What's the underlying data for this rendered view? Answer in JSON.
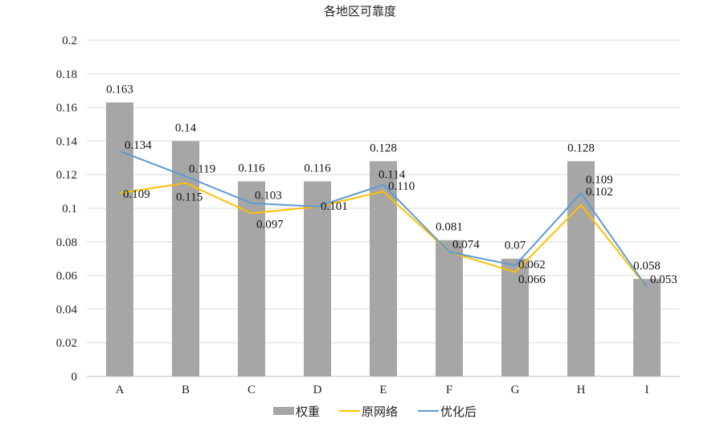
{
  "chart_data": {
    "type": "bar",
    "title": "各地区可靠度",
    "categories": [
      "A",
      "B",
      "C",
      "D",
      "E",
      "F",
      "G",
      "H",
      "I"
    ],
    "ylim": [
      0,
      0.2
    ],
    "yticks": [
      "0",
      "0.02",
      "0.04",
      "0.06",
      "0.08",
      "0.1",
      "0.12",
      "0.14",
      "0.16",
      "0.18",
      "0.2"
    ],
    "grid": true,
    "legend_position": "bottom",
    "series": [
      {
        "name": "权重",
        "type": "bar",
        "color": "#a6a6a6",
        "values": [
          0.163,
          0.14,
          0.116,
          0.116,
          0.128,
          0.081,
          0.07,
          0.128,
          0.058
        ],
        "labels": [
          "0.163",
          "0.14",
          "0.116",
          "0.116",
          "0.128",
          "0.081",
          "0.07",
          "0.128",
          "0.058"
        ]
      },
      {
        "name": "原网络",
        "type": "line",
        "color": "#ffc000",
        "values": [
          0.109,
          0.115,
          0.097,
          0.101,
          0.11,
          0.074,
          0.062,
          0.102,
          0.053
        ],
        "labels": [
          "0.109",
          "0.115",
          "0.097",
          "0.101",
          "0.110",
          "0.074",
          "0.062",
          "0.102",
          "0.053"
        ]
      },
      {
        "name": "优化后",
        "type": "line",
        "color": "#5b9bd5",
        "values": [
          0.134,
          0.119,
          0.103,
          0.101,
          0.114,
          0.074,
          0.066,
          0.109,
          0.053
        ],
        "labels": [
          "0.134",
          "0.119",
          "0.103",
          "",
          "0.114",
          "",
          "0.066",
          "0.109",
          ""
        ]
      }
    ]
  }
}
